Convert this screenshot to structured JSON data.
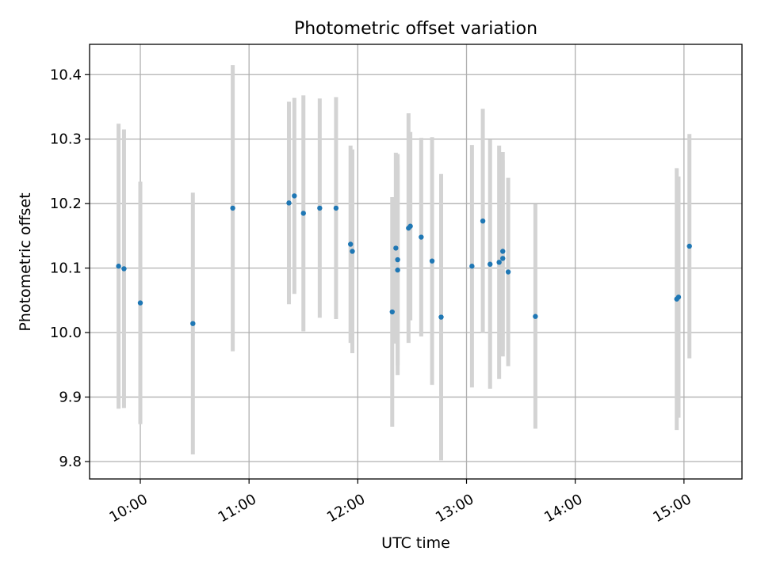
{
  "chart_data": {
    "type": "scatter",
    "title": "Photometric offset variation",
    "xlabel": "UTC time",
    "ylabel": "Photometric offset",
    "x_axis": {
      "kind": "time",
      "range": [
        "09:32",
        "15:32"
      ],
      "ticks": [
        "10:00",
        "11:00",
        "12:00",
        "13:00",
        "14:00",
        "15:00"
      ]
    },
    "y_axis": {
      "range": [
        9.773,
        10.447
      ],
      "ticks": [
        9.8,
        9.9,
        10.0,
        10.1,
        10.2,
        10.3,
        10.4
      ],
      "tick_labels": [
        "9.8",
        "9.9",
        "10.0",
        "10.1",
        "10.2",
        "10.3",
        "10.4"
      ]
    },
    "grid": true,
    "colors": {
      "point": "#1f77b4",
      "errorbar": "#d3d3d3",
      "grid": "#b0b0b0"
    },
    "points": [
      {
        "time": "09:48",
        "y": 10.103,
        "err": 0.221
      },
      {
        "time": "09:51",
        "y": 10.099,
        "err": 0.216
      },
      {
        "time": "10:00",
        "y": 10.046,
        "err": 0.188
      },
      {
        "time": "10:29",
        "y": 10.014,
        "err": 0.203
      },
      {
        "time": "10:51",
        "y": 10.193,
        "err": 0.222
      },
      {
        "time": "11:22",
        "y": 10.201,
        "err": 0.157
      },
      {
        "time": "11:25",
        "y": 10.212,
        "err": 0.152
      },
      {
        "time": "11:30",
        "y": 10.185,
        "err": 0.183
      },
      {
        "time": "11:39",
        "y": 10.193,
        "err": 0.17
      },
      {
        "time": "11:48",
        "y": 10.193,
        "err": 0.172
      },
      {
        "time": "11:56",
        "y": 10.137,
        "err": 0.153
      },
      {
        "time": "11:57",
        "y": 10.126,
        "err": 0.158
      },
      {
        "time": "12:19",
        "y": 10.032,
        "err": 0.178
      },
      {
        "time": "12:21",
        "y": 10.131,
        "err": 0.148
      },
      {
        "time": "12:22",
        "y": 10.113,
        "err": 0.164
      },
      {
        "time": "12:22",
        "y": 10.097,
        "err": 0.163
      },
      {
        "time": "12:28",
        "y": 10.162,
        "err": 0.178
      },
      {
        "time": "12:29",
        "y": 10.165,
        "err": 0.146
      },
      {
        "time": "12:35",
        "y": 10.148,
        "err": 0.154
      },
      {
        "time": "12:41",
        "y": 10.111,
        "err": 0.192
      },
      {
        "time": "12:46",
        "y": 10.024,
        "err": 0.222
      },
      {
        "time": "13:03",
        "y": 10.103,
        "err": 0.188
      },
      {
        "time": "13:09",
        "y": 10.173,
        "err": 0.174
      },
      {
        "time": "13:13",
        "y": 10.106,
        "err": 0.193
      },
      {
        "time": "13:18",
        "y": 10.109,
        "err": 0.181
      },
      {
        "time": "13:20",
        "y": 10.115,
        "err": 0.152
      },
      {
        "time": "13:20",
        "y": 10.126,
        "err": 0.154
      },
      {
        "time": "13:23",
        "y": 10.094,
        "err": 0.146
      },
      {
        "time": "13:38",
        "y": 10.025,
        "err": 0.174
      },
      {
        "time": "14:56",
        "y": 10.052,
        "err": 0.203
      },
      {
        "time": "14:57",
        "y": 10.055,
        "err": 0.187
      },
      {
        "time": "15:03",
        "y": 10.134,
        "err": 0.174
      }
    ]
  }
}
